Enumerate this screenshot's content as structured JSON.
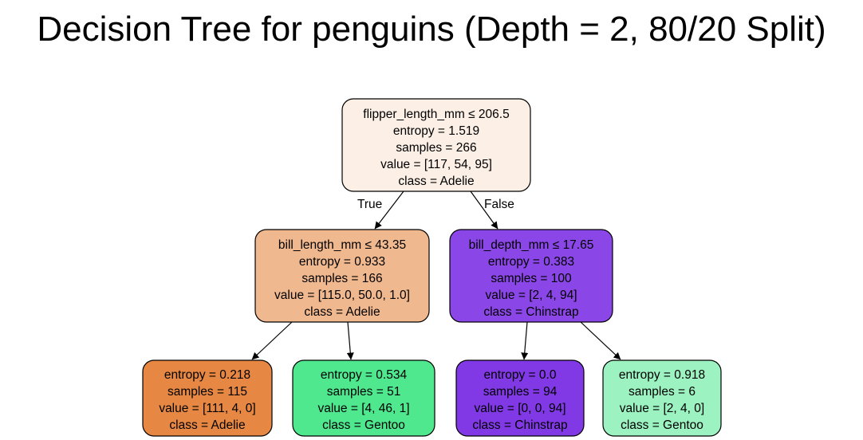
{
  "title": "Decision Tree for penguins (Depth = 2, 80/20 Split)",
  "edge_labels": {
    "true": "True",
    "false": "False"
  },
  "nodes": {
    "root": {
      "lines": [
        "flipper_length_mm ≤ 206.5",
        "entropy = 1.519",
        "samples = 266",
        "value = [117, 54, 95]",
        "class = Adelie"
      ],
      "color": "#fcefe6"
    },
    "left": {
      "lines": [
        "bill_length_mm ≤ 43.35",
        "entropy = 0.933",
        "samples = 166",
        "value = [115.0, 50.0, 1.0]",
        "class = Adelie"
      ],
      "color": "#f0b88f"
    },
    "right": {
      "lines": [
        "bill_depth_mm ≤ 17.65",
        "entropy = 0.383",
        "samples = 100",
        "value = [2, 4, 94]",
        "class = Chinstrap"
      ],
      "color": "#8b46e7"
    },
    "leaf1": {
      "lines": [
        "entropy = 0.218",
        "samples = 115",
        "value = [111, 4, 0]",
        "class = Adelie"
      ],
      "color": "#e68743"
    },
    "leaf2": {
      "lines": [
        "entropy = 0.534",
        "samples = 51",
        "value = [4, 46, 1]",
        "class = Gentoo"
      ],
      "color": "#4fe88f"
    },
    "leaf3": {
      "lines": [
        "entropy = 0.0",
        "samples = 94",
        "value = [0, 0, 94]",
        "class = Chinstrap"
      ],
      "color": "#8139e5"
    },
    "leaf4": {
      "lines": [
        "entropy = 0.918",
        "samples = 6",
        "value = [2, 4, 0]",
        "class = Gentoo"
      ],
      "color": "#9cf2c0"
    }
  }
}
